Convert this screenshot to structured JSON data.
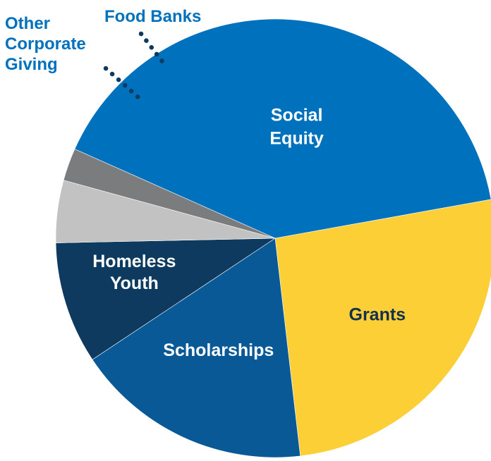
{
  "chart_data": {
    "type": "pie",
    "title": "",
    "slices": [
      {
        "label": "Social Equity",
        "lines": [
          "Social",
          "Equity"
        ],
        "value": 40.5,
        "color": "#0071bc",
        "text_color": "#ffffff"
      },
      {
        "label": "Grants",
        "lines": [
          "Grants"
        ],
        "value": 26.0,
        "color": "#fccf36",
        "text_color": "#13304f"
      },
      {
        "label": "Scholarships",
        "lines": [
          "Scholarships"
        ],
        "value": 17.5,
        "color": "#0a5997",
        "text_color": "#ffffff"
      },
      {
        "label": "Homeless Youth",
        "lines": [
          "Homeless",
          "Youth"
        ],
        "value": 9.0,
        "color": "#0d3a5e",
        "text_color": "#ffffff"
      },
      {
        "label": "Other Corporate Giving",
        "lines": [
          "Other",
          "Corporate",
          "Giving"
        ],
        "value": 4.6,
        "color": "#c2c2c2",
        "text_color": "#0071bc"
      },
      {
        "label": "Food Banks",
        "lines": [
          "Food Banks"
        ],
        "value": 2.4,
        "color": "#7a7c7e",
        "text_color": "#0071bc"
      }
    ],
    "legend": "none",
    "leader_line_color": "#0d3a5e"
  }
}
